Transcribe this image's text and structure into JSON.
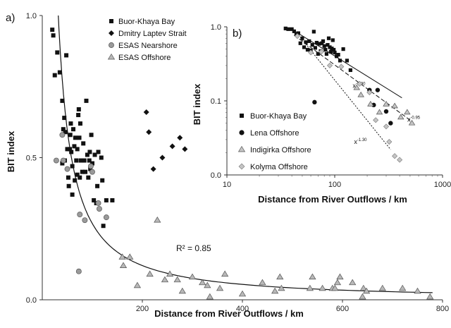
{
  "chart_data": [
    {
      "panel_label": "a)",
      "type": "scatter",
      "xlabel": "Distance from River Outflows / km",
      "ylabel": "BIT index",
      "xlim": [
        0,
        800
      ],
      "ylim": [
        0,
        1.0
      ],
      "xticks": [
        200,
        400,
        600,
        800
      ],
      "xtick_labels": [
        "200",
        "400",
        "600",
        "800"
      ],
      "yticks": [
        0,
        0.5,
        1.0
      ],
      "ytick_labels": [
        "0.0",
        "0.5",
        "1.0"
      ],
      "legend_position": "top-right",
      "annotation": "R² = 0.85",
      "fit_curve": {
        "x_start": 32,
        "x_end": 780
      },
      "series": [
        {
          "name": "Buor-Khaya Bay",
          "marker": "square",
          "color": "#111111",
          "points": [
            [
              20,
              0.95
            ],
            [
              22,
              0.93
            ],
            [
              25,
              0.79
            ],
            [
              30,
              0.87
            ],
            [
              35,
              0.8
            ],
            [
              40,
              0.7
            ],
            [
              40,
              0.48
            ],
            [
              42,
              0.6
            ],
            [
              44,
              0.64
            ],
            [
              45,
              0.49
            ],
            [
              46,
              0.59
            ],
            [
              48,
              0.86
            ],
            [
              50,
              0.53
            ],
            [
              52,
              0.43
            ],
            [
              53,
              0.4
            ],
            [
              55,
              0.53
            ],
            [
              56,
              0.58
            ],
            [
              57,
              0.62
            ],
            [
              58,
              0.52
            ],
            [
              60,
              0.37
            ],
            [
              60,
              0.47
            ],
            [
              62,
              0.6
            ],
            [
              64,
              0.54
            ],
            [
              65,
              0.42
            ],
            [
              66,
              0.57
            ],
            [
              68,
              0.49
            ],
            [
              70,
              0.44
            ],
            [
              70,
              0.53
            ],
            [
              72,
              0.65
            ],
            [
              73,
              0.67
            ],
            [
              74,
              0.57
            ],
            [
              75,
              0.43
            ],
            [
              76,
              0.62
            ],
            [
              77,
              0.49
            ],
            [
              80,
              0.45
            ],
            [
              82,
              0.55
            ],
            [
              84,
              0.49
            ],
            [
              86,
              0.45
            ],
            [
              88,
              0.7
            ],
            [
              90,
              0.51
            ],
            [
              92,
              0.43
            ],
            [
              94,
              0.49
            ],
            [
              95,
              0.52
            ],
            [
              96,
              0.46
            ],
            [
              98,
              0.58
            ],
            [
              100,
              0.48
            ],
            [
              103,
              0.35
            ],
            [
              105,
              0.51
            ],
            [
              108,
              0.34
            ],
            [
              110,
              0.4
            ],
            [
              112,
              0.52
            ],
            [
              118,
              0.5
            ],
            [
              120,
              0.42
            ],
            [
              122,
              0.26
            ],
            [
              128,
              0.35
            ],
            [
              140,
              0.35
            ]
          ]
        },
        {
          "name": "Dmitry Laptev Strait",
          "marker": "diamond",
          "color": "#111111",
          "points": [
            [
              208,
              0.66
            ],
            [
              213,
              0.59
            ],
            [
              222,
              0.46
            ],
            [
              240,
              0.5
            ],
            [
              260,
              0.54
            ],
            [
              275,
              0.57
            ],
            [
              285,
              0.53
            ]
          ]
        },
        {
          "name": "ESAS Nearshore",
          "marker": "circle",
          "color": "#9a9a9a",
          "points": [
            [
              28,
              0.49
            ],
            [
              40,
              0.58
            ],
            [
              42,
              0.49
            ],
            [
              50,
              0.46
            ],
            [
              73,
              0.1
            ],
            [
              75,
              0.3
            ],
            [
              85,
              0.28
            ],
            [
              97,
              0.47
            ],
            [
              100,
              0.45
            ],
            [
              112,
              0.34
            ],
            [
              114,
              0.32
            ],
            [
              128,
              0.29
            ]
          ]
        },
        {
          "name": "ESAS Offshore",
          "marker": "triangle",
          "color": "#b8b8b8",
          "points": [
            [
              160,
              0.15
            ],
            [
              162,
              0.12
            ],
            [
              175,
              0.15
            ],
            [
              190,
              0.05
            ],
            [
              215,
              0.09
            ],
            [
              230,
              0.28
            ],
            [
              245,
              0.07
            ],
            [
              255,
              0.09
            ],
            [
              270,
              0.07
            ],
            [
              280,
              0.03
            ],
            [
              300,
              0.08
            ],
            [
              320,
              0.06
            ],
            [
              330,
              0.05
            ],
            [
              335,
              0.01
            ],
            [
              355,
              0.04
            ],
            [
              365,
              0.09
            ],
            [
              400,
              0.02
            ],
            [
              440,
              0.06
            ],
            [
              465,
              0.03
            ],
            [
              475,
              0.08
            ],
            [
              478,
              0.04
            ],
            [
              535,
              0.04
            ],
            [
              540,
              0.08
            ],
            [
              560,
              0.04
            ],
            [
              580,
              0.04
            ],
            [
              585,
              0.04
            ],
            [
              590,
              0.06
            ],
            [
              595,
              0.08
            ],
            [
              620,
              0.06
            ],
            [
              640,
              0.01
            ],
            [
              642,
              0.04
            ],
            [
              648,
              0.03
            ],
            [
              680,
              0.04
            ],
            [
              720,
              0.04
            ],
            [
              750,
              0.03
            ],
            [
              775,
              0.01
            ]
          ]
        }
      ]
    },
    {
      "panel_label": "b)",
      "type": "scatter",
      "xscale": "log",
      "yscale": "log",
      "xlabel": "Distance from River Outflows / km",
      "ylabel": "BIT index",
      "xlim": [
        10,
        1000
      ],
      "ylim": [
        0.01,
        1.0
      ],
      "xticks": [
        10,
        100,
        1000
      ],
      "xtick_labels": [
        "10",
        "100",
        "1000"
      ],
      "yticks": [
        0.01,
        0.1,
        1.0
      ],
      "ytick_labels": [
        "0.0",
        "0.1",
        "1.0"
      ],
      "legend_position": "bottom-left",
      "fit_lines": [
        {
          "label": "x",
          "exp": "-0.90",
          "style": "solid",
          "from": [
            38,
            0.97
          ],
          "to": [
            420,
            0.11
          ]
        },
        {
          "label": "x",
          "exp": "-0.95",
          "style": "dashed",
          "from": [
            42,
            0.77
          ],
          "to": [
            500,
            0.055
          ]
        },
        {
          "label": "x",
          "exp": "-1.30",
          "style": "dotted",
          "from": [
            48,
            0.72
          ],
          "to": [
            330,
            0.022
          ]
        }
      ],
      "series": [
        {
          "name": "Buor-Khaya Bay",
          "marker": "square",
          "color": "#111111",
          "points": [
            [
              35,
              0.95
            ],
            [
              37,
              0.93
            ],
            [
              40,
              0.93
            ],
            [
              42,
              0.87
            ],
            [
              44,
              0.79
            ],
            [
              46,
              0.82
            ],
            [
              48,
              0.6
            ],
            [
              50,
              0.7
            ],
            [
              52,
              0.53
            ],
            [
              54,
              0.62
            ],
            [
              56,
              0.49
            ],
            [
              58,
              0.64
            ],
            [
              60,
              0.48
            ],
            [
              62,
              0.57
            ],
            [
              64,
              0.86
            ],
            [
              66,
              0.52
            ],
            [
              68,
              0.61
            ],
            [
              70,
              0.43
            ],
            [
              72,
              0.59
            ],
            [
              74,
              0.47
            ],
            [
              76,
              0.6
            ],
            [
              78,
              0.64
            ],
            [
              80,
              0.55
            ],
            [
              82,
              0.49
            ],
            [
              84,
              0.43
            ],
            [
              86,
              0.57
            ],
            [
              88,
              0.7
            ],
            [
              90,
              0.53
            ],
            [
              92,
              0.46
            ],
            [
              94,
              0.51
            ],
            [
              96,
              0.66
            ],
            [
              98,
              0.49
            ],
            [
              100,
              0.45
            ],
            [
              104,
              0.4
            ],
            [
              108,
              0.42
            ],
            [
              112,
              0.35
            ],
            [
              120,
              0.5
            ],
            [
              130,
              0.35
            ],
            [
              140,
              0.26
            ]
          ]
        },
        {
          "name": "Lena Offshore",
          "marker": "circle",
          "color": "#111111",
          "points": [
            [
              65,
              0.096
            ],
            [
              210,
              0.14
            ],
            [
              230,
              0.088
            ],
            [
              250,
              0.14
            ],
            [
              300,
              0.072
            ],
            [
              330,
              0.05
            ]
          ]
        },
        {
          "name": "Indigirka Offshore",
          "marker": "triangle",
          "color": "#c4c4c4",
          "points": [
            [
              160,
              0.15
            ],
            [
              175,
              0.12
            ],
            [
              215,
              0.09
            ],
            [
              260,
              0.07
            ],
            [
              300,
              0.09
            ],
            [
              360,
              0.085
            ],
            [
              410,
              0.06
            ],
            [
              470,
              0.07
            ],
            [
              520,
              0.05
            ]
          ]
        },
        {
          "name": "Kolyma Offshore",
          "marker": "diamond",
          "color": "#c4c4c4",
          "points": [
            [
              45,
              0.75
            ],
            [
              60,
              0.45
            ],
            [
              75,
              0.46
            ],
            [
              90,
              0.3
            ],
            [
              115,
              0.29
            ],
            [
              170,
              0.17
            ],
            [
              210,
              0.13
            ],
            [
              240,
              0.055
            ],
            [
              300,
              0.045
            ],
            [
              320,
              0.028
            ],
            [
              360,
              0.018
            ],
            [
              400,
              0.016
            ]
          ]
        }
      ]
    }
  ]
}
